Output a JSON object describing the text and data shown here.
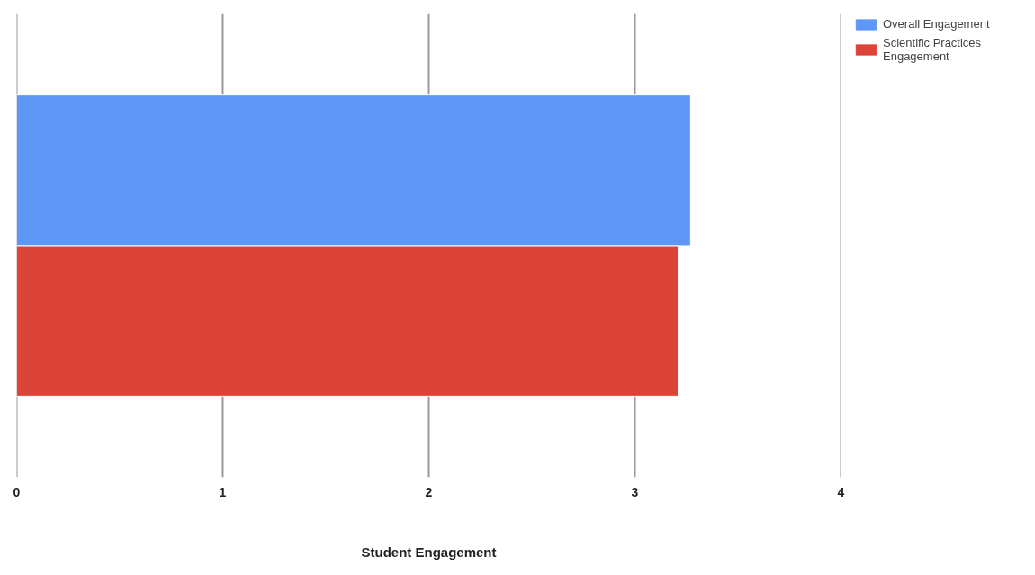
{
  "chart_data": {
    "type": "bar",
    "orientation": "horizontal",
    "xlabel": "Student Engagement",
    "categories": [
      null
    ],
    "series": [
      {
        "name": "Overall Engagement",
        "color": "#5e97f6",
        "values": [
          3.27
        ]
      },
      {
        "name": "Scientific Practices Engagement",
        "color": "#db4437",
        "values": [
          3.21
        ]
      }
    ],
    "xlim": [
      0,
      4
    ],
    "xticks": [
      0,
      1,
      2,
      3,
      4
    ],
    "grid": "x",
    "legend": "top right",
    "tick_labels": "x"
  }
}
